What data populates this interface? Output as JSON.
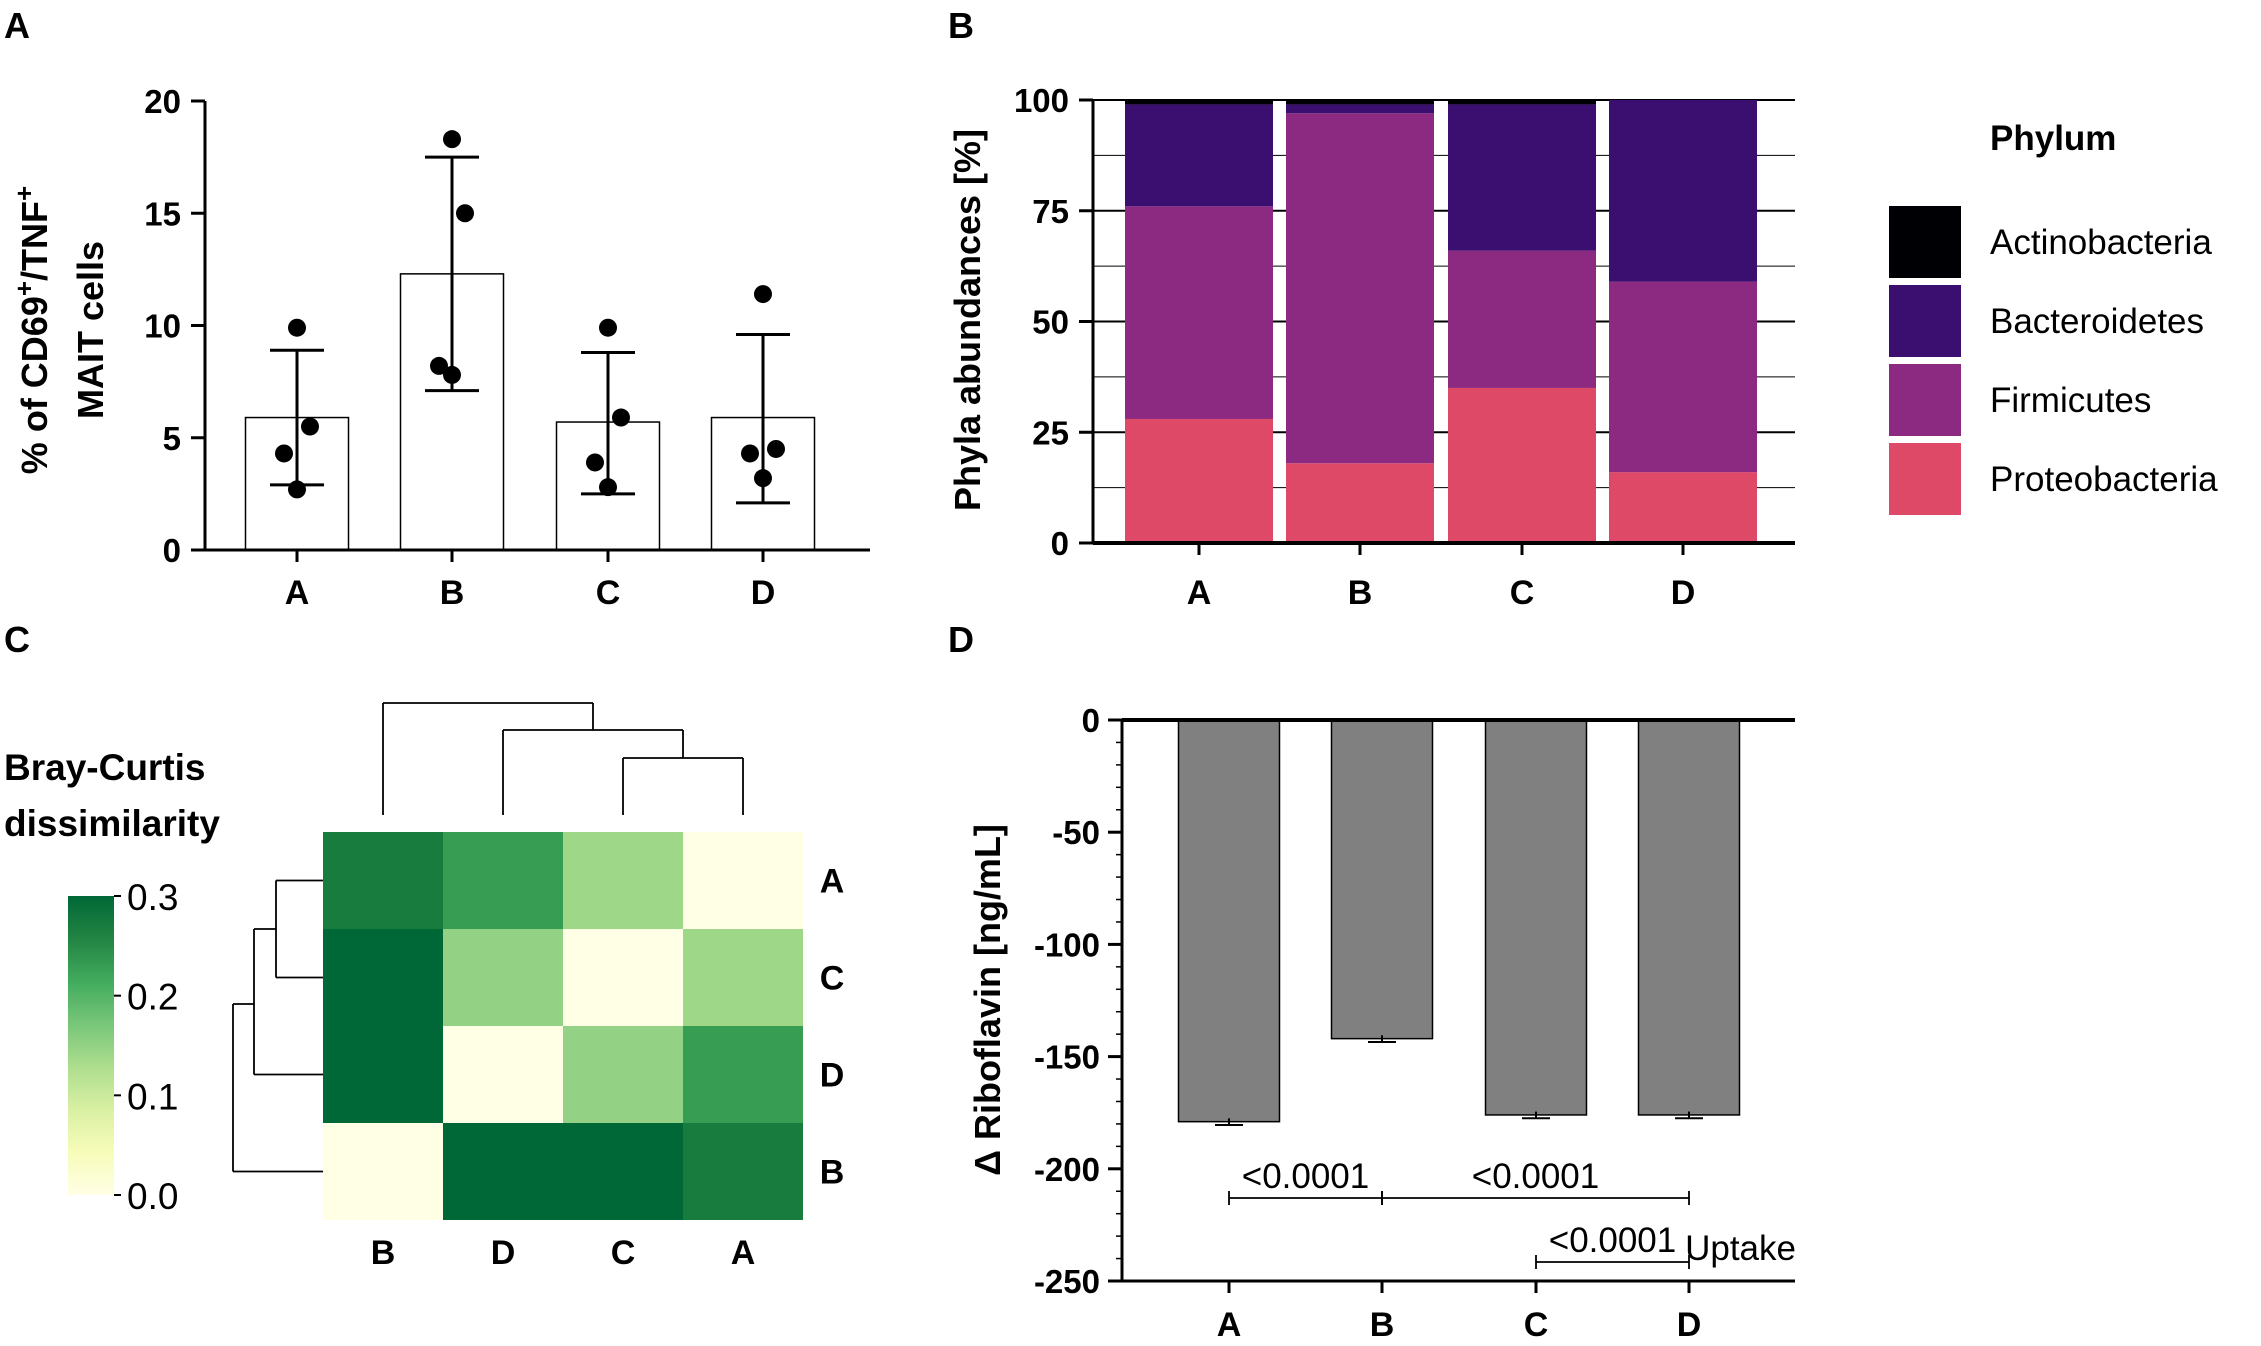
{
  "chart_data": [
    {
      "panel": "A",
      "type": "bar",
      "ylabel_line1_prefix": "% of CD69",
      "ylabel_sup1": "+",
      "ylabel_mid": "/TNF",
      "ylabel_sup2": "+",
      "ylabel_line2": "MAIT cells",
      "categories": [
        "A",
        "B",
        "C",
        "D"
      ],
      "values": [
        5.9,
        12.3,
        5.7,
        5.9
      ],
      "error_low": [
        2.9,
        7.1,
        2.5,
        2.1
      ],
      "error_high": [
        8.9,
        17.5,
        8.8,
        9.6
      ],
      "points": [
        [
          9.9,
          5.5,
          4.3,
          2.7
        ],
        [
          18.3,
          15.0,
          8.2,
          7.8
        ],
        [
          9.9,
          5.9,
          3.9,
          2.8
        ],
        [
          11.4,
          4.5,
          4.3,
          3.2
        ]
      ],
      "ylim": [
        0,
        20
      ],
      "yticks": [
        0,
        5,
        10,
        15,
        20
      ],
      "ytick_labels": [
        "0",
        "5",
        "10",
        "15",
        "20"
      ],
      "bar_color": "#ffffff"
    },
    {
      "panel": "B",
      "type": "bar",
      "stacked": true,
      "ylabel": "Phyla abundances [%]",
      "categories": [
        "A",
        "B",
        "C",
        "D"
      ],
      "legend_title": "Phylum",
      "series": [
        {
          "name": "Proteobacteria",
          "color": "#de4968",
          "values": [
            28,
            18,
            35,
            16
          ]
        },
        {
          "name": "Firmicutes",
          "color": "#8c2981",
          "values": [
            48,
            79,
            31,
            43
          ]
        },
        {
          "name": "Bacteroidetes",
          "color": "#3b0f70",
          "values": [
            23,
            2,
            33,
            41
          ]
        },
        {
          "name": "Actinobacteria",
          "color": "#000004",
          "values": [
            1,
            1,
            1,
            0
          ]
        }
      ],
      "ylim": [
        0,
        100
      ],
      "yticks": [
        0,
        25,
        50,
        75,
        100
      ],
      "ytick_labels": [
        "0",
        "25",
        "50",
        "75",
        "100"
      ]
    },
    {
      "panel": "C",
      "type": "heatmap",
      "title_line1": "Bray-Curtis",
      "title_line2": "dissimilarity",
      "columns": [
        "B",
        "D",
        "C",
        "A"
      ],
      "rows": [
        "A",
        "C",
        "D",
        "B"
      ],
      "values": [
        [
          0.27,
          0.23,
          0.14,
          0.0
        ],
        [
          0.3,
          0.15,
          0.0,
          0.14
        ],
        [
          0.3,
          0.0,
          0.15,
          0.23
        ],
        [
          0.0,
          0.3,
          0.31,
          0.27
        ]
      ],
      "colorbar_range": [
        0.0,
        0.3
      ],
      "colorbar_ticks": [
        0.0,
        0.1,
        0.2,
        0.3
      ],
      "colorbar_labels": [
        "0.0",
        "0.1",
        "0.2",
        "0.3"
      ],
      "colormap": [
        "#ffffe5",
        "#f7fcb9",
        "#d9f0a3",
        "#addd8e",
        "#78c679",
        "#41ab5d",
        "#238443",
        "#006837"
      ]
    },
    {
      "panel": "D",
      "type": "bar",
      "ylabel": "Δ Riboflavin [ng/mL]",
      "categories": [
        "A",
        "B",
        "C",
        "D"
      ],
      "values": [
        -179,
        -142,
        -176,
        -176
      ],
      "error": [
        1.5,
        1.5,
        1.5,
        1.5
      ],
      "ylim": [
        -250,
        0
      ],
      "yticks": [
        0,
        -50,
        -100,
        -150,
        -200,
        -250
      ],
      "ytick_labels": [
        "0",
        "-50",
        "-100",
        "-150",
        "-200",
        "-250"
      ],
      "bar_color": "#808080",
      "annotations": [
        {
          "label": "<0.0001",
          "from": "A",
          "to": "B",
          "level": 1
        },
        {
          "label": "<0.0001",
          "from": "B",
          "to": "D",
          "level": 1
        },
        {
          "label": "<0.0001",
          "from": "C",
          "to": "D",
          "level": 2
        }
      ],
      "note": "Uptake"
    }
  ],
  "panel_labels": [
    "A",
    "B",
    "C",
    "D"
  ]
}
